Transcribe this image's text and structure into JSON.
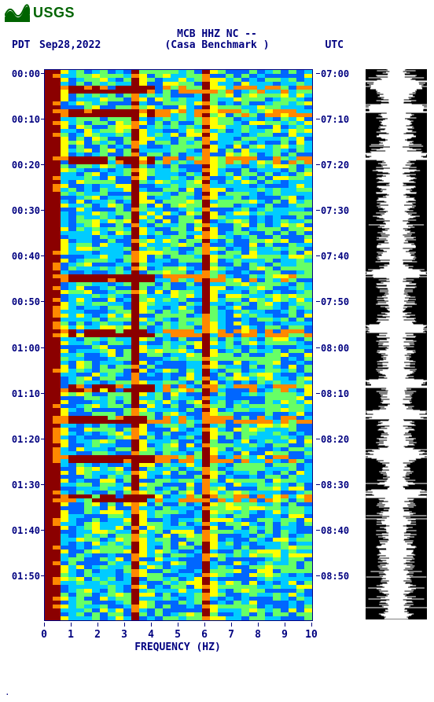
{
  "logo": {
    "text": "USGS",
    "color": "#006400"
  },
  "header": {
    "station": "MCB HHZ NC --",
    "tz_left": "PDT",
    "date": "Sep28,2022",
    "benchmark": "(Casa Benchmark )",
    "tz_right": "UTC",
    "color": "#000080",
    "fontsize": 13
  },
  "spectrogram": {
    "type": "heatmap",
    "xlim": [
      0,
      10
    ],
    "x_label": "FREQUENCY (HZ)",
    "x_ticks": [
      0,
      1,
      2,
      3,
      4,
      5,
      6,
      7,
      8,
      9,
      10
    ],
    "y_left_label": "PDT",
    "y_right_label": "UTC",
    "y_left_ticks": [
      "00:00",
      "00:10",
      "00:20",
      "00:30",
      "00:40",
      "00:50",
      "01:00",
      "01:10",
      "01:20",
      "01:30",
      "01:40",
      "01:50"
    ],
    "y_right_ticks": [
      "07:00",
      "07:10",
      "07:20",
      "07:30",
      "07:40",
      "07:50",
      "08:00",
      "08:10",
      "08:20",
      "08:30",
      "08:40",
      "08:50"
    ],
    "tick_positions_pct": [
      0.7,
      9.0,
      17.3,
      25.6,
      33.9,
      42.2,
      50.5,
      58.8,
      67.1,
      75.4,
      83.7,
      92.0
    ],
    "colormap": {
      "low": "#000080",
      "mid_low": "#0066ff",
      "mid": "#00ccff",
      "mid_high": "#66ff66",
      "high": "#ffff00",
      "higher": "#ff8800",
      "peak": "#8b0000"
    },
    "background_color": "#ffffff",
    "axis_color": "#000080",
    "n_freq_bins": 34,
    "n_time_bins": 140,
    "persistent_bands_hz": [
      0.4,
      3.3,
      6.0
    ],
    "event_rows": [
      4,
      10,
      22,
      52,
      66,
      80,
      88,
      98,
      108
    ]
  },
  "amplitude_panel": {
    "background": "#000000",
    "waveform_color": "#ffffff"
  },
  "footer": {
    "mark": "."
  }
}
